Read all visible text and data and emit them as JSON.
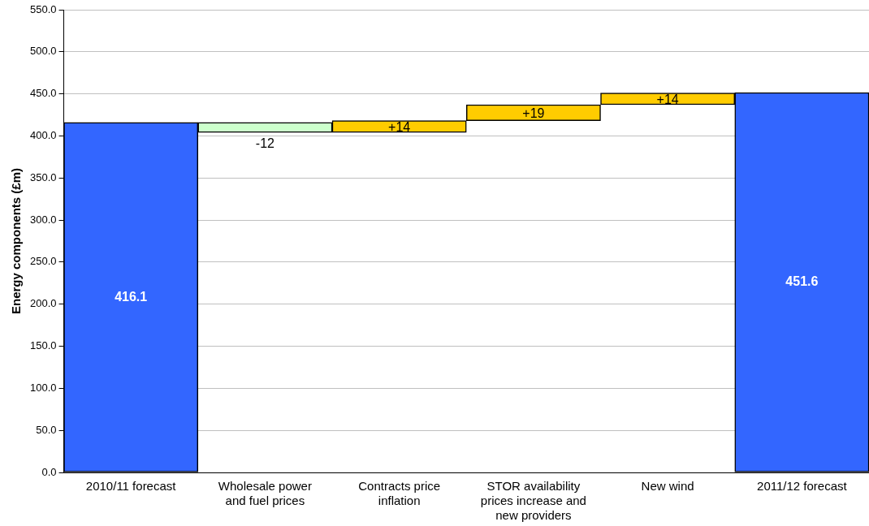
{
  "chart_data": {
    "type": "bar",
    "ylabel": "Energy components (£m)",
    "categories": [
      "2010/11 forecast",
      "Wholesale power and fuel prices",
      "Contracts price inflation",
      "STOR availability prices increase and new providers",
      "New wind",
      "2011/12 forecast"
    ],
    "values": [
      416.1,
      -12,
      14,
      19,
      14,
      451.6
    ],
    "base": [
      0,
      416.1,
      404.1,
      418.1,
      437.1,
      0
    ],
    "value_labels": [
      "416.1",
      "-12",
      "+14",
      "+19",
      "+14",
      "451.6"
    ],
    "colors": [
      "#3366ff",
      "#ccffcc",
      "#ffcc00",
      "#ffcc00",
      "#ffcc00",
      "#3366ff"
    ],
    "ylim": [
      0,
      550
    ],
    "yticks": [
      {
        "value": 0,
        "label": "0.0"
      },
      {
        "value": 50,
        "label": "50.0"
      },
      {
        "value": 100,
        "label": "100.0"
      },
      {
        "value": 150,
        "label": "150.0"
      },
      {
        "value": 200,
        "label": "200.0"
      },
      {
        "value": 250,
        "label": "250.0"
      },
      {
        "value": 300,
        "label": "300.0"
      },
      {
        "value": 350,
        "label": "350.0"
      },
      {
        "value": 400,
        "label": "400.0"
      },
      {
        "value": 450,
        "label": "450.0"
      },
      {
        "value": 500,
        "label": "500.0"
      },
      {
        "value": 550,
        "label": "550.0"
      }
    ],
    "grid": "y",
    "legend": false
  }
}
